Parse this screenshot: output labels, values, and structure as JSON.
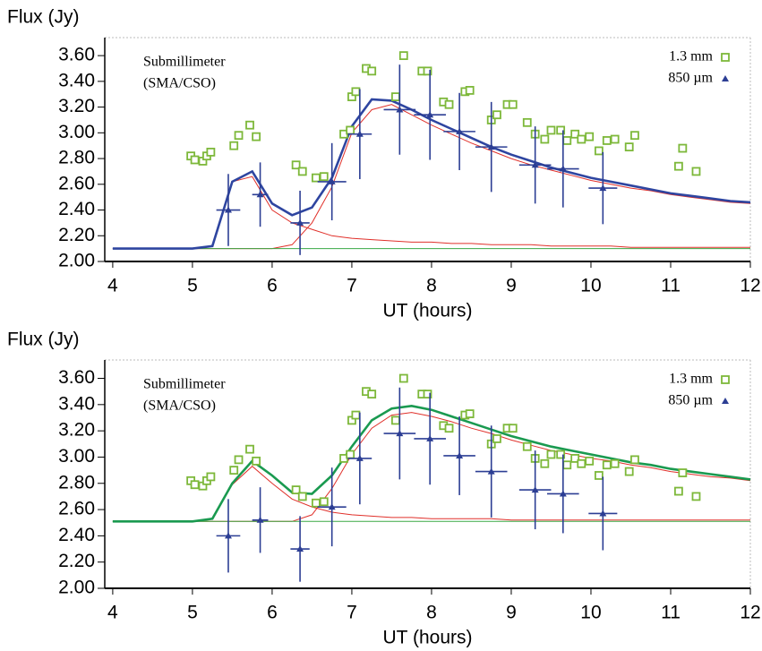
{
  "chart_data": [
    {
      "type": "scatter",
      "y_label": "Flux (Jy)",
      "x_label": "UT (hours)",
      "annotation": [
        "Submillimeter",
        "(SMA/CSO)"
      ],
      "xlim": [
        3.9,
        12
      ],
      "ylim": [
        2.0,
        3.74
      ],
      "xticks": [
        4,
        5,
        6,
        7,
        8,
        9,
        10,
        11,
        12
      ],
      "yticks": [
        {
          "value": 2.0,
          "label": "2.00"
        },
        {
          "value": 2.2,
          "label": "2.20"
        },
        {
          "value": 2.4,
          "label": "2.40"
        },
        {
          "value": 2.6,
          "label": "2.60"
        },
        {
          "value": 2.8,
          "label": "2.80"
        },
        {
          "value": 3.0,
          "label": "3.00"
        },
        {
          "value": 3.2,
          "label": "3.20"
        },
        {
          "value": 3.4,
          "label": "3.40"
        },
        {
          "value": 3.6,
          "label": "3.60"
        }
      ],
      "legend": "upper right",
      "series": [
        {
          "name": "1.3 mm",
          "color": "#7db83a",
          "marker": "square",
          "x": [
            4.98,
            5.03,
            5.13,
            5.18,
            5.23,
            5.52,
            5.58,
            5.72,
            5.8,
            6.3,
            6.38,
            6.55,
            6.65,
            6.9,
            6.98,
            7.0,
            7.05,
            7.18,
            7.25,
            7.55,
            7.65,
            7.88,
            7.95,
            8.15,
            8.22,
            8.42,
            8.48,
            8.75,
            8.82,
            8.95,
            9.02,
            9.2,
            9.3,
            9.42,
            9.5,
            9.62,
            9.7,
            9.8,
            9.88,
            9.98,
            10.1,
            10.2,
            10.3,
            10.48,
            10.55,
            11.1,
            11.15,
            11.32
          ],
          "values": [
            2.82,
            2.79,
            2.78,
            2.82,
            2.85,
            2.9,
            2.98,
            3.06,
            2.97,
            2.75,
            2.7,
            2.65,
            2.66,
            2.99,
            3.02,
            3.28,
            3.32,
            3.5,
            3.48,
            3.28,
            3.6,
            3.48,
            3.48,
            3.24,
            3.22,
            3.32,
            3.33,
            3.1,
            3.14,
            3.22,
            3.22,
            3.08,
            2.99,
            2.95,
            3.02,
            3.02,
            2.94,
            2.99,
            2.95,
            2.97,
            2.86,
            2.94,
            2.95,
            2.89,
            2.98,
            2.74,
            2.88,
            2.7
          ]
        },
        {
          "name": "850 µm",
          "color": "#2c3e94",
          "marker": "triangle",
          "x": [
            5.45,
            5.85,
            6.35,
            6.75,
            7.1,
            7.6,
            7.98,
            8.35,
            8.75,
            9.3,
            9.65,
            10.15
          ],
          "values": [
            2.4,
            2.52,
            2.3,
            2.62,
            2.99,
            3.18,
            3.14,
            3.01,
            2.89,
            2.75,
            2.72,
            2.57
          ],
          "xerr": [
            0.15,
            0.1,
            0.12,
            0.18,
            0.15,
            0.2,
            0.2,
            0.2,
            0.2,
            0.2,
            0.2,
            0.18
          ],
          "yerr": [
            0.28,
            0.25,
            0.25,
            0.3,
            0.35,
            0.35,
            0.35,
            0.3,
            0.35,
            0.3,
            0.3,
            0.28
          ]
        }
      ],
      "model_x": [
        4.0,
        4.25,
        4.5,
        4.75,
        5.0,
        5.25,
        5.5,
        5.75,
        6.0,
        6.25,
        6.5,
        6.75,
        7.0,
        7.25,
        7.5,
        7.75,
        8.0,
        8.25,
        8.5,
        8.75,
        9.0,
        9.25,
        9.5,
        9.75,
        10.0,
        10.25,
        10.5,
        10.75,
        11.0,
        11.25,
        11.5,
        11.75,
        12.0
      ],
      "models": [
        {
          "color": "#e0302a",
          "values": [
            2.1,
            2.1,
            2.1,
            2.1,
            2.1,
            2.12,
            2.62,
            2.66,
            2.4,
            2.3,
            2.25,
            2.2,
            2.18,
            2.17,
            2.16,
            2.15,
            2.15,
            2.14,
            2.14,
            2.13,
            2.13,
            2.13,
            2.12,
            2.12,
            2.12,
            2.12,
            2.11,
            2.11,
            2.11,
            2.11,
            2.11,
            2.11,
            2.11
          ]
        },
        {
          "color": "#e0302a",
          "values": [
            2.1,
            2.1,
            2.1,
            2.1,
            2.1,
            2.1,
            2.1,
            2.1,
            2.1,
            2.13,
            2.3,
            2.58,
            3.0,
            3.18,
            3.22,
            3.14,
            3.06,
            2.99,
            2.92,
            2.86,
            2.8,
            2.75,
            2.71,
            2.67,
            2.63,
            2.6,
            2.57,
            2.55,
            2.52,
            2.5,
            2.48,
            2.46,
            2.45
          ]
        },
        {
          "color": "#3aa845",
          "values": [
            2.1,
            2.1,
            2.1,
            2.1,
            2.1,
            2.1,
            2.1,
            2.1,
            2.1,
            2.1,
            2.1,
            2.1,
            2.1,
            2.1,
            2.1,
            2.1,
            2.1,
            2.1,
            2.1,
            2.1,
            2.1,
            2.1,
            2.1,
            2.1,
            2.1,
            2.1,
            2.1,
            2.1,
            2.1,
            2.1,
            2.1,
            2.1,
            2.1
          ]
        },
        {
          "color": "#2e45a0",
          "values": [
            2.1,
            2.1,
            2.1,
            2.1,
            2.1,
            2.12,
            2.62,
            2.7,
            2.45,
            2.36,
            2.42,
            2.65,
            3.05,
            3.26,
            3.25,
            3.18,
            3.1,
            3.03,
            2.96,
            2.89,
            2.83,
            2.78,
            2.73,
            2.69,
            2.65,
            2.62,
            2.59,
            2.56,
            2.53,
            2.51,
            2.49,
            2.47,
            2.46
          ]
        }
      ]
    },
    {
      "type": "scatter",
      "y_label": "Flux (Jy)",
      "x_label": "UT (hours)",
      "annotation": [
        "Submillimeter",
        "(SMA/CSO)"
      ],
      "xlim": [
        3.9,
        12
      ],
      "ylim": [
        2.0,
        3.74
      ],
      "xticks": [
        4,
        5,
        6,
        7,
        8,
        9,
        10,
        11,
        12
      ],
      "yticks": [
        {
          "value": 2.0,
          "label": "2.00"
        },
        {
          "value": 2.2,
          "label": "2.20"
        },
        {
          "value": 2.4,
          "label": "2.40"
        },
        {
          "value": 2.6,
          "label": "2.60"
        },
        {
          "value": 2.8,
          "label": "2.80"
        },
        {
          "value": 3.0,
          "label": "3.00"
        },
        {
          "value": 3.2,
          "label": "3.20"
        },
        {
          "value": 3.4,
          "label": "3.40"
        },
        {
          "value": 3.6,
          "label": "3.60"
        }
      ],
      "legend": "upper right",
      "series": [
        {
          "name": "1.3 mm",
          "color": "#7db83a",
          "marker": "square",
          "x": [
            4.98,
            5.03,
            5.13,
            5.18,
            5.23,
            5.52,
            5.58,
            5.72,
            5.8,
            6.3,
            6.38,
            6.55,
            6.65,
            6.9,
            6.98,
            7.0,
            7.05,
            7.18,
            7.25,
            7.55,
            7.65,
            7.88,
            7.95,
            8.15,
            8.22,
            8.42,
            8.48,
            8.75,
            8.82,
            8.95,
            9.02,
            9.2,
            9.3,
            9.42,
            9.5,
            9.62,
            9.7,
            9.8,
            9.88,
            9.98,
            10.1,
            10.2,
            10.3,
            10.48,
            10.55,
            11.1,
            11.15,
            11.32
          ],
          "values": [
            2.82,
            2.79,
            2.78,
            2.82,
            2.85,
            2.9,
            2.98,
            3.06,
            2.97,
            2.75,
            2.7,
            2.65,
            2.66,
            2.99,
            3.02,
            3.28,
            3.32,
            3.5,
            3.48,
            3.28,
            3.6,
            3.48,
            3.48,
            3.24,
            3.22,
            3.32,
            3.33,
            3.1,
            3.14,
            3.22,
            3.22,
            3.08,
            2.99,
            2.95,
            3.02,
            3.02,
            2.94,
            2.99,
            2.95,
            2.97,
            2.86,
            2.94,
            2.95,
            2.89,
            2.98,
            2.74,
            2.88,
            2.7
          ]
        },
        {
          "name": "850 µm",
          "color": "#2c3e94",
          "marker": "triangle",
          "x": [
            5.45,
            5.85,
            6.35,
            6.75,
            7.1,
            7.6,
            7.98,
            8.35,
            8.75,
            9.3,
            9.65,
            10.15
          ],
          "values": [
            2.4,
            2.52,
            2.3,
            2.62,
            2.99,
            3.18,
            3.14,
            3.01,
            2.89,
            2.75,
            2.72,
            2.57
          ],
          "xerr": [
            0.15,
            0.1,
            0.12,
            0.18,
            0.15,
            0.2,
            0.2,
            0.2,
            0.2,
            0.2,
            0.2,
            0.18
          ],
          "yerr": [
            0.28,
            0.25,
            0.25,
            0.3,
            0.35,
            0.35,
            0.35,
            0.3,
            0.35,
            0.3,
            0.3,
            0.28
          ]
        }
      ],
      "model_x": [
        4.0,
        4.25,
        4.5,
        4.75,
        5.0,
        5.25,
        5.5,
        5.75,
        6.0,
        6.25,
        6.5,
        6.75,
        7.0,
        7.25,
        7.5,
        7.75,
        8.0,
        8.25,
        8.5,
        8.75,
        9.0,
        9.25,
        9.5,
        9.75,
        10.0,
        10.25,
        10.5,
        10.75,
        11.0,
        11.25,
        11.5,
        11.75,
        12.0
      ],
      "models": [
        {
          "color": "#e0302a",
          "values": [
            2.51,
            2.51,
            2.51,
            2.51,
            2.51,
            2.53,
            2.79,
            2.93,
            2.8,
            2.68,
            2.62,
            2.58,
            2.56,
            2.55,
            2.54,
            2.54,
            2.53,
            2.53,
            2.53,
            2.53,
            2.52,
            2.52,
            2.52,
            2.52,
            2.52,
            2.52,
            2.52,
            2.52,
            2.52,
            2.52,
            2.52,
            2.52,
            2.52
          ]
        },
        {
          "color": "#e0302a",
          "values": [
            2.51,
            2.51,
            2.51,
            2.51,
            2.51,
            2.51,
            2.51,
            2.51,
            2.51,
            2.51,
            2.56,
            2.76,
            3.02,
            3.22,
            3.32,
            3.34,
            3.31,
            3.27,
            3.22,
            3.18,
            3.13,
            3.09,
            3.05,
            3.02,
            2.99,
            2.97,
            2.94,
            2.92,
            2.89,
            2.87,
            2.85,
            2.84,
            2.82
          ]
        },
        {
          "color": "#3aa845",
          "values": [
            2.51,
            2.51,
            2.51,
            2.51,
            2.51,
            2.51,
            2.51,
            2.51,
            2.51,
            2.51,
            2.51,
            2.51,
            2.51,
            2.51,
            2.51,
            2.51,
            2.51,
            2.51,
            2.51,
            2.51,
            2.51,
            2.51,
            2.51,
            2.51,
            2.51,
            2.51,
            2.51,
            2.51,
            2.51,
            2.51,
            2.51,
            2.51,
            2.51
          ]
        },
        {
          "color": "#1a9a50",
          "values": [
            2.51,
            2.51,
            2.51,
            2.51,
            2.51,
            2.53,
            2.8,
            2.97,
            2.86,
            2.73,
            2.72,
            2.86,
            3.08,
            3.28,
            3.37,
            3.39,
            3.36,
            3.31,
            3.26,
            3.21,
            3.16,
            3.12,
            3.08,
            3.05,
            3.02,
            2.99,
            2.96,
            2.94,
            2.91,
            2.89,
            2.87,
            2.85,
            2.83
          ]
        }
      ]
    }
  ]
}
